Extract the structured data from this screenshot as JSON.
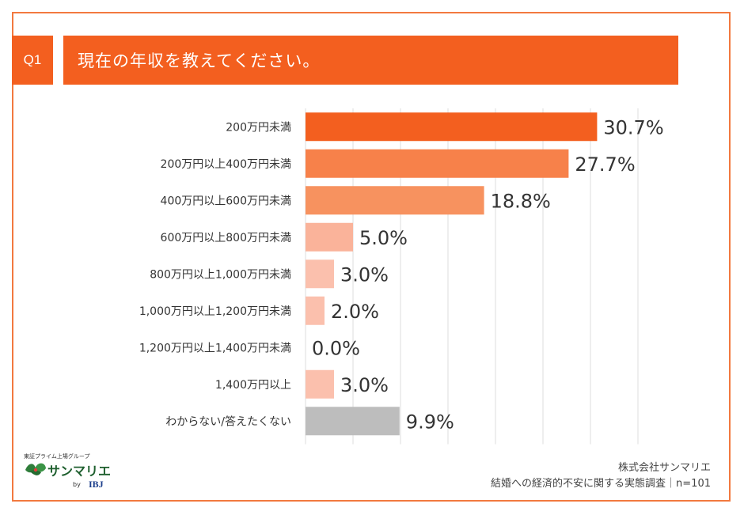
{
  "question": {
    "number": "Q1",
    "title": "現在の年収を教えてください。"
  },
  "chart_data": {
    "type": "bar",
    "orientation": "horizontal",
    "categories": [
      "200万円未満",
      "200万円以上400万円未満",
      "400万円以上600万円未満",
      "600万円以上800万円未満",
      "800万円以上1,000万円未満",
      "1,000万円以上1,200万円未満",
      "1,200万円以上1,400万円未満",
      "1,400万円以上",
      "わからない/答えたくない"
    ],
    "values": [
      30.7,
      27.7,
      18.8,
      5.0,
      3.0,
      2.0,
      0.0,
      3.0,
      9.9
    ],
    "value_labels": [
      "30.7%",
      "27.7%",
      "18.8%",
      "5.0%",
      "3.0%",
      "2.0%",
      "0.0%",
      "3.0%",
      "9.9%"
    ],
    "bar_colors": [
      "#f35f1f",
      "#f7814a",
      "#f7925f",
      "#fab39a",
      "#fbc0ad",
      "#fbc0ad",
      "#fbc0ad",
      "#fbc0ad",
      "#bdbdbd"
    ],
    "xlim": [
      0,
      35
    ],
    "grid": true
  },
  "footer": {
    "company": "株式会社サンマリエ",
    "survey": "結婚への経済的不安に関する実態調査｜n=101"
  },
  "logo": {
    "group": "東証プライム上場グループ",
    "name": "サンマリエ",
    "by": "by",
    "ibj": "IBJ"
  }
}
